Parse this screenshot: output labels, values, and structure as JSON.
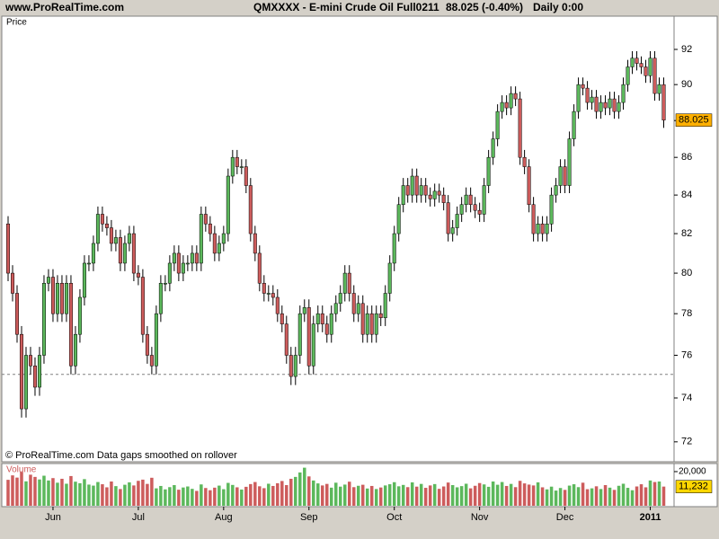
{
  "header": {
    "site": "www.ProRealTime.com",
    "instrument": "QMXXXX - E-mini Crude Oil Full0211",
    "quote": "88.025 (-0.40%)",
    "period": "Daily  0:00"
  },
  "chart_data": {
    "type": "candlestick",
    "panel_label": "Price",
    "footer": "© ProRealTime.com  Data gaps smoothed on rollover",
    "log_scale": true,
    "up_color": "#5cb85c",
    "down_color": "#cd5c5c",
    "ylim": [
      71.15,
      93.93
    ],
    "yticks": [
      72,
      74,
      76,
      78,
      80,
      82,
      84,
      86,
      88,
      90,
      92
    ],
    "xlim": [
      -1.4,
      148.3
    ],
    "xticks": [
      {
        "value": 10,
        "label": "Jun"
      },
      {
        "value": 29,
        "label": "Jul"
      },
      {
        "value": 48,
        "label": "Aug"
      },
      {
        "value": 67,
        "label": "Sep"
      },
      {
        "value": 86,
        "label": "Oct"
      },
      {
        "value": 105,
        "label": "Nov"
      },
      {
        "value": 124,
        "label": "Dec"
      },
      {
        "value": 143,
        "label": "2011"
      }
    ],
    "reference_line": 75.1,
    "open": [
      82.5,
      80,
      79,
      77,
      73.5,
      76,
      75.5,
      74.5,
      76,
      79.5,
      79.8,
      78,
      79.5,
      78,
      79.5,
      75.5,
      77,
      78.8,
      80.5,
      80.5,
      81.5,
      83,
      82.5,
      82.3,
      81.5,
      81.8,
      80.5,
      81.5,
      82,
      80,
      79.8,
      77,
      76,
      75.5,
      78,
      79.5,
      79.5,
      80.5,
      81,
      80,
      80.5,
      80.5,
      81,
      80.5,
      83,
      82.5,
      82,
      81,
      81.5,
      82,
      85,
      86,
      85.5,
      85.5,
      84.5,
      82,
      81,
      79.5,
      79,
      79,
      78.8,
      78,
      77.5,
      76,
      75,
      76,
      78,
      78.3,
      75.5,
      77.5,
      78,
      77.5,
      77,
      78,
      78.5,
      79,
      80,
      79,
      78,
      78.5,
      77,
      78,
      77,
      78,
      77.8,
      79,
      80.5,
      82,
      83.5,
      84.5,
      84,
      85,
      84,
      84.5,
      84,
      83.8,
      84.2,
      84,
      83.6,
      82,
      82.3,
      83,
      83.5,
      84,
      83.5,
      83.2,
      83,
      84.5,
      86,
      87,
      88.5,
      89,
      88.7,
      89.5,
      89.2,
      86,
      85.5,
      83.5,
      82,
      82.5,
      82,
      82.5,
      84,
      84.5,
      85.5,
      84.5,
      87,
      88.5,
      90,
      89.8,
      89,
      89.3,
      88.5,
      89,
      88.7,
      89.2,
      88.5,
      89,
      90,
      91,
      91.5,
      91.2,
      91,
      90.5,
      91.5,
      89.5,
      90
    ],
    "high": [
      82.9,
      80.4,
      79.4,
      77.4,
      76.4,
      76.4,
      75.9,
      76.4,
      79.9,
      80.2,
      80.2,
      79.9,
      79.9,
      79.9,
      79.9,
      77.4,
      79.2,
      80.9,
      80.9,
      81.9,
      83.4,
      83.4,
      82.9,
      82.7,
      82.2,
      82.2,
      81.9,
      82.4,
      82.4,
      80.4,
      80.2,
      77.4,
      76.4,
      78.4,
      79.9,
      79.9,
      80.9,
      81.4,
      81.4,
      80.9,
      80.9,
      81.4,
      81.4,
      83.4,
      83.4,
      82.9,
      82.4,
      81.9,
      82.4,
      85.4,
      86.4,
      86.4,
      85.9,
      85.9,
      84.9,
      82.4,
      81.4,
      79.9,
      79.4,
      79.4,
      79.2,
      78.4,
      77.9,
      76.4,
      76.4,
      78.4,
      78.7,
      78.7,
      77.9,
      78.4,
      78.4,
      77.9,
      78.4,
      78.9,
      79.4,
      80.4,
      80.4,
      79.4,
      78.9,
      78.9,
      78.4,
      78.4,
      78.4,
      78.4,
      79.4,
      80.9,
      82.4,
      83.9,
      84.9,
      84.9,
      85.4,
      85.4,
      84.9,
      84.9,
      84.4,
      84.6,
      84.6,
      84.4,
      84,
      82.7,
      83.4,
      83.9,
      84.4,
      84.4,
      83.9,
      83.6,
      84.9,
      86.4,
      87.4,
      88.9,
      89.4,
      89.4,
      89.9,
      89.9,
      89.6,
      86.4,
      85.9,
      83.9,
      82.9,
      82.9,
      82.9,
      84.4,
      84.9,
      85.9,
      85.9,
      87.4,
      88.9,
      90.4,
      90.4,
      90.2,
      89.7,
      89.7,
      89.4,
      89.4,
      89.6,
      89.6,
      89.4,
      90.4,
      91.4,
      91.9,
      91.9,
      91.6,
      91.4,
      91.9,
      91.9,
      90.4,
      90.4
    ],
    "low": [
      79.6,
      78.6,
      76.6,
      73.1,
      73.1,
      75.1,
      74.1,
      74.1,
      75.6,
      79.1,
      77.6,
      77.6,
      77.6,
      77.6,
      75.1,
      75.1,
      76.6,
      78.4,
      80.1,
      80.1,
      81.1,
      82.1,
      81.9,
      81.1,
      81.1,
      80.1,
      80.1,
      81.1,
      79.6,
      79.4,
      76.6,
      75.6,
      75.1,
      75.1,
      77.6,
      79.1,
      79.1,
      80.1,
      79.6,
      79.6,
      80.1,
      80.1,
      80.1,
      80.1,
      82.1,
      81.6,
      80.6,
      80.6,
      81.1,
      81.6,
      84.6,
      85.1,
      85.1,
      84.1,
      81.6,
      80.6,
      79.1,
      78.6,
      78.6,
      78.4,
      77.6,
      77.1,
      75.6,
      74.6,
      74.6,
      75.6,
      77.6,
      75.1,
      75.1,
      77.1,
      77.1,
      76.6,
      76.6,
      77.6,
      78.1,
      78.6,
      78.6,
      77.6,
      77.6,
      76.6,
      76.6,
      76.6,
      76.6,
      77.4,
      77.4,
      78.6,
      80.1,
      81.6,
      83.1,
      83.6,
      83.6,
      83.6,
      83.6,
      83.6,
      83.4,
      83.4,
      83.6,
      83.2,
      81.6,
      81.6,
      81.9,
      82.6,
      83.1,
      83.1,
      82.8,
      82.6,
      82.6,
      84.1,
      85.6,
      86.6,
      88.1,
      88.3,
      88.3,
      88.8,
      85.6,
      85.1,
      83.1,
      81.6,
      81.6,
      81.6,
      81.6,
      82.1,
      83.6,
      84.1,
      84.1,
      84.1,
      86.6,
      88.1,
      89.4,
      88.6,
      88.6,
      88.1,
      88.1,
      88.3,
      88.3,
      88.1,
      88.1,
      88.6,
      89.6,
      90.6,
      90.8,
      90.6,
      90.1,
      90.1,
      89.1,
      89.1,
      87.6
    ],
    "close": [
      80,
      79,
      77,
      73.5,
      76,
      75.5,
      74.5,
      76,
      79.5,
      79.8,
      78,
      79.5,
      78,
      79.5,
      75.5,
      77,
      78.8,
      80.5,
      80.5,
      81.5,
      83,
      82.5,
      82.3,
      81.5,
      81.8,
      80.5,
      81.5,
      82,
      80,
      79.8,
      77,
      76,
      75.5,
      78,
      79.5,
      79.5,
      80.5,
      81,
      80,
      80.5,
      80.5,
      81,
      80.5,
      83,
      82.5,
      82,
      81,
      81.5,
      82,
      85,
      86,
      85.5,
      85.5,
      84.5,
      82,
      81,
      79.5,
      79,
      79,
      78.8,
      78,
      77.5,
      76,
      75,
      76,
      78,
      78.3,
      75.5,
      77.5,
      78,
      77.5,
      77,
      78,
      78.5,
      79,
      80,
      79,
      78,
      78.5,
      77,
      78,
      77,
      78,
      77.8,
      79,
      80.5,
      82,
      83.5,
      84.5,
      84,
      85,
      84,
      84.5,
      84,
      83.8,
      84.2,
      84,
      83.6,
      82,
      82.3,
      83,
      83.5,
      84,
      83.5,
      83.2,
      83,
      84.5,
      86,
      87,
      88.5,
      89,
      88.7,
      89.5,
      89.2,
      86,
      85.5,
      83.5,
      82,
      82.5,
      82,
      82.5,
      84,
      84.5,
      85.5,
      84.5,
      87,
      88.5,
      90,
      89.8,
      89,
      89.3,
      88.5,
      89,
      88.7,
      89.2,
      88.5,
      89,
      90,
      91,
      91.5,
      91.2,
      91,
      90.5,
      91.5,
      89.5,
      90,
      88.025
    ],
    "volume": {
      "label": "Volume",
      "ylim": [
        0,
        24200
      ],
      "yticks": [
        {
          "value": 20000,
          "label": "20,000"
        }
      ],
      "last_label": "11,232",
      "values": [
        15200,
        17800,
        16500,
        19800,
        14300,
        18200,
        16900,
        15400,
        17600,
        14800,
        16200,
        13500,
        15800,
        12900,
        17400,
        14100,
        13200,
        15600,
        12400,
        11800,
        13900,
        12600,
        10800,
        14200,
        11500,
        9800,
        12300,
        13700,
        11900,
        14600,
        15300,
        12800,
        16400,
        10200,
        11600,
        9600,
        10900,
        12100,
        9400,
        10700,
        11300,
        9900,
        8700,
        12500,
        10400,
        9100,
        10600,
        11800,
        9700,
        13400,
        12200,
        10800,
        9500,
        11100,
        12700,
        13900,
        11400,
        10300,
        12900,
        11600,
        13200,
        14500,
        12100,
        15800,
        16900,
        19500,
        22300,
        17200,
        14800,
        13100,
        11900,
        12800,
        10600,
        13500,
        11200,
        12400,
        14100,
        10900,
        11700,
        12300,
        10100,
        11600,
        9800,
        10700,
        11900,
        12600,
        13800,
        11400,
        12200,
        10900,
        13700,
        11200,
        12800,
        10500,
        11900,
        12700,
        9900,
        11300,
        13600,
        12100,
        10800,
        11500,
        12900,
        10200,
        11700,
        13300,
        12500,
        11100,
        14200,
        12300,
        13900,
        11600,
        12800,
        10900,
        14600,
        13100,
        12400,
        11900,
        13700,
        10800,
        9600,
        11200,
        8900,
        10400,
        9300,
        11800,
        12600,
        10900,
        13500,
        9700,
        10200,
        11400,
        9800,
        12100,
        10600,
        9300,
        11700,
        12900,
        10500,
        9100,
        11300,
        12600,
        10800,
        14800,
        13900,
        14200,
        11232
      ]
    }
  }
}
